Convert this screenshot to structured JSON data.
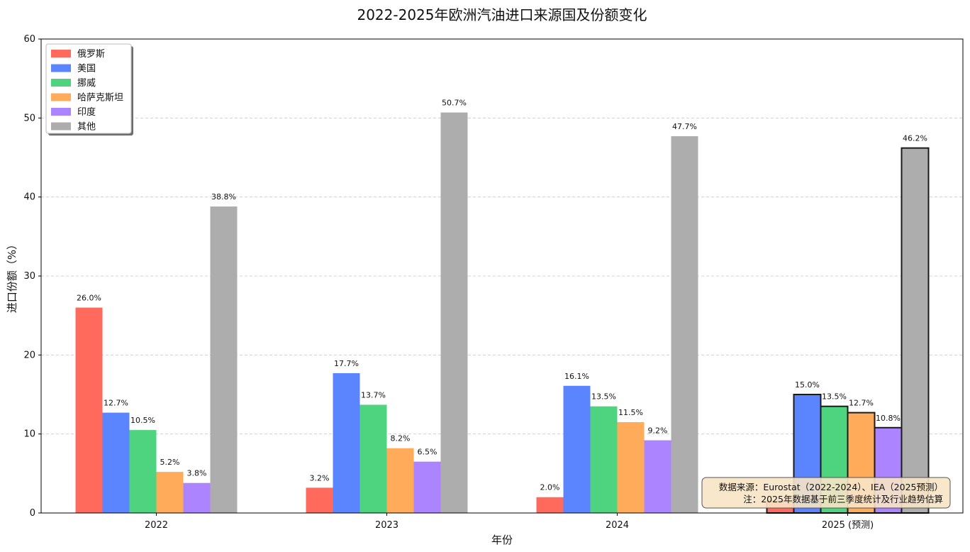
{
  "chart_data": {
    "type": "bar",
    "title": "2022-2025年欧洲汽油进口来源国及份额变化",
    "xlabel": "年份",
    "ylabel": "进口份额（%）",
    "categories": [
      "2022",
      "2023",
      "2024",
      "2025 (预测)"
    ],
    "ylim": [
      0,
      60
    ],
    "yticks": [
      0,
      10,
      20,
      30,
      40,
      50,
      60
    ],
    "grid": "y-dashed",
    "legend_position": "top-left",
    "series": [
      {
        "name": "俄罗斯",
        "color": "#ff6a5c",
        "values": [
          26.0,
          3.2,
          2.0,
          1.5
        ],
        "labels": [
          "26.0%",
          "3.2%",
          "2.0%",
          ""
        ]
      },
      {
        "name": "美国",
        "color": "#5b84ff",
        "values": [
          12.7,
          17.7,
          16.1,
          15.0
        ],
        "labels": [
          "12.7%",
          "17.7%",
          "16.1%",
          "15.0%"
        ]
      },
      {
        "name": "挪威",
        "color": "#4ed47f",
        "values": [
          10.5,
          13.7,
          13.5,
          13.5
        ],
        "labels": [
          "10.5%",
          "13.7%",
          "13.5%",
          "13.5%"
        ]
      },
      {
        "name": "哈萨克斯坦",
        "color": "#ffab5a",
        "values": [
          5.2,
          8.2,
          11.5,
          12.7
        ],
        "labels": [
          "5.2%",
          "8.2%",
          "11.5%",
          "12.7%"
        ]
      },
      {
        "name": "印度",
        "color": "#ad84ff",
        "values": [
          3.8,
          6.5,
          9.2,
          10.8
        ],
        "labels": [
          "3.8%",
          "6.5%",
          "9.2%",
          "10.8%"
        ]
      },
      {
        "name": "其他",
        "color": "#adadad",
        "values": [
          38.8,
          50.7,
          47.7,
          46.2
        ],
        "labels": [
          "38.8%",
          "50.7%",
          "47.7%",
          "46.2%"
        ]
      }
    ],
    "highlighted_category": "2025 (预测)",
    "annotation": {
      "line1": "数据来源：Eurostat（2022-2024）、IEA（2025预测）",
      "line2": "注：2025年数据基于前三季度统计及行业趋势估算"
    }
  }
}
